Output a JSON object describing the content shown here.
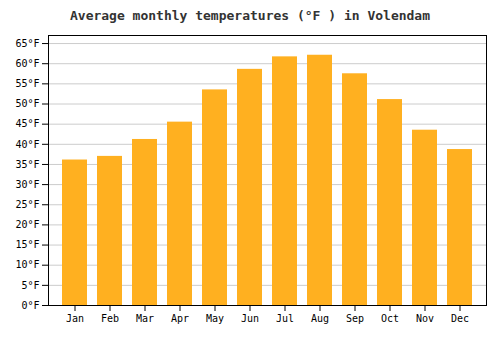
{
  "chart_data": {
    "type": "bar",
    "title": "Average monthly temperatures (°F ) in Volendam",
    "categories": [
      "Jan",
      "Feb",
      "Mar",
      "Apr",
      "May",
      "Jun",
      "Jul",
      "Aug",
      "Sep",
      "Oct",
      "Nov",
      "Dec"
    ],
    "values": [
      36.1,
      37.0,
      41.2,
      45.5,
      53.5,
      58.6,
      61.7,
      62.1,
      57.5,
      51.1,
      43.5,
      38.7
    ],
    "color": "#FFB020",
    "ylim": [
      0,
      67
    ],
    "yticks": [
      {
        "value": 0,
        "label": "0°F"
      },
      {
        "value": 5,
        "label": "5°F"
      },
      {
        "value": 10,
        "label": "10°F"
      },
      {
        "value": 15,
        "label": "15°F"
      },
      {
        "value": 20,
        "label": "20°F"
      },
      {
        "value": 25,
        "label": "25°F"
      },
      {
        "value": 30,
        "label": "30°F"
      },
      {
        "value": 35,
        "label": "35°F"
      },
      {
        "value": 40,
        "label": "40°F"
      },
      {
        "value": 45,
        "label": "45°F"
      },
      {
        "value": 50,
        "label": "50°F"
      },
      {
        "value": 55,
        "label": "55°F"
      },
      {
        "value": 60,
        "label": "60°F"
      },
      {
        "value": 65,
        "label": "65°F"
      }
    ],
    "grid": true
  }
}
